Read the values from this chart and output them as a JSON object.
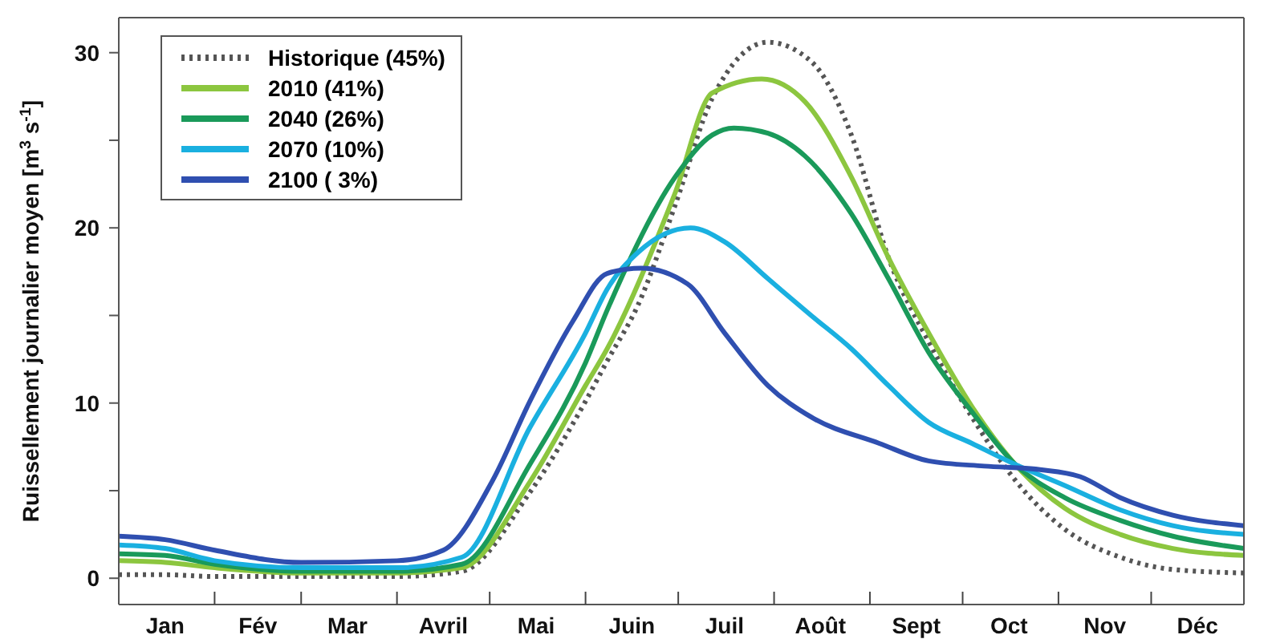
{
  "chart_data": {
    "type": "line",
    "ylabel": "Ruissellement journalier moyen [m$^{3}$ s$^{-1}$]",
    "xlim": [
      "--01-01",
      "--12-31"
    ],
    "xticks": [
      {
        "value": "--01-16",
        "label": "Jan"
      },
      {
        "value": "--02-01",
        "label": null
      },
      {
        "value": "--02-15",
        "label": "Fév"
      },
      {
        "value": "--03-01",
        "label": null
      },
      {
        "value": "--03-16",
        "label": "Mar"
      },
      {
        "value": "--04-01",
        "label": null
      },
      {
        "value": "--04-16",
        "label": "Avril"
      },
      {
        "value": "--05-01",
        "label": null
      },
      {
        "value": "--05-16",
        "label": "Mai"
      },
      {
        "value": "--06-01",
        "label": null
      },
      {
        "value": "--06-16",
        "label": "Juin"
      },
      {
        "value": "--07-01",
        "label": null
      },
      {
        "value": "--07-16",
        "label": "Juil"
      },
      {
        "value": "--08-01",
        "label": null
      },
      {
        "value": "--08-16",
        "label": "Août"
      },
      {
        "value": "--09-01",
        "label": null
      },
      {
        "value": "--09-16",
        "label": "Sept"
      },
      {
        "value": "--10-01",
        "label": null
      },
      {
        "value": "--10-16",
        "label": "Oct"
      },
      {
        "value": "--11-01",
        "label": null
      },
      {
        "value": "--11-16",
        "label": "Nov"
      },
      {
        "value": "--12-01",
        "label": null
      },
      {
        "value": "--12-16",
        "label": "Déc"
      }
    ],
    "ylim": [
      -1.5,
      32
    ],
    "yticks": [
      0,
      {
        "value": 5,
        "label": null
      },
      10,
      {
        "value": 15,
        "label": null
      },
      20,
      {
        "value": 25,
        "label": null
      },
      30
    ],
    "legend": "top left",
    "marker": "none",
    "series": [
      {
        "name": "Historique (45%)",
        "color": "#555555",
        "line_style": "dotted",
        "x": [
          "--01-01",
          "--01-16",
          "--02-01",
          "--03-01",
          "--04-01",
          "--04-22",
          "--05-14",
          "--06-01",
          "--06-08",
          "--06-18",
          "--06-30",
          "--07-12",
          "--07-30",
          "--08-13",
          "--08-26",
          "--09-07",
          "--09-20",
          "--10-04",
          "--10-18",
          "--11-03",
          "--11-21",
          "--12-08",
          "--12-31"
        ],
        "values": [
          0.2,
          0.2,
          0.1,
          0.1,
          0.1,
          0.4,
          4.9,
          10.1,
          12.4,
          15.6,
          21.3,
          27.4,
          30.6,
          29.5,
          25.3,
          18.3,
          13.5,
          9.2,
          5.6,
          2.8,
          1.2,
          0.5,
          0.3
        ]
      },
      {
        "name": "2010 (41%)",
        "color": "#8cc63f",
        "line_style": "solid",
        "x": [
          "--01-01",
          "--01-16",
          "--02-01",
          "--03-01",
          "--04-01",
          "--04-22",
          "--05-14",
          "--06-01",
          "--06-08",
          "--06-30",
          "--07-12",
          "--07-28",
          "--08-11",
          "--08-26",
          "--09-07",
          "--09-20",
          "--10-04",
          "--10-18",
          "--11-03",
          "--11-21",
          "--12-08",
          "--12-31"
        ],
        "values": [
          1.0,
          0.9,
          0.6,
          0.3,
          0.3,
          0.6,
          5.5,
          11,
          13.1,
          22,
          27.7,
          28.5,
          27.2,
          22.9,
          18.3,
          14.0,
          9.8,
          6.5,
          4.0,
          2.5,
          1.7,
          1.3
        ]
      },
      {
        "name": "2040 (26%)",
        "color": "#1a9a5a",
        "line_style": "solid",
        "x": [
          "--01-01",
          "--01-16",
          "--02-01",
          "--03-01",
          "--04-01",
          "--04-22",
          "--05-14",
          "--06-01",
          "--06-08",
          "--06-30",
          "--07-12",
          "--07-19",
          "--07-30",
          "--08-11",
          "--08-26",
          "--09-07",
          "--09-20",
          "--10-04",
          "--10-18",
          "--11-03",
          "--11-21",
          "--12-08",
          "--12-31"
        ],
        "values": [
          1.4,
          1.3,
          0.8,
          0.4,
          0.4,
          0.8,
          6.5,
          12.3,
          15.3,
          22.9,
          25.3,
          25.7,
          25.4,
          24.1,
          20.8,
          17.1,
          12.9,
          9.5,
          6.5,
          4.6,
          3.3,
          2.4,
          1.7
        ]
      },
      {
        "name": "2070 (10%)",
        "color": "#1ab0e0",
        "line_style": "solid",
        "x": [
          "--01-01",
          "--01-16",
          "--02-01",
          "--03-01",
          "--04-01",
          "--04-22",
          "--05-14",
          "--06-01",
          "--06-08",
          "--06-18",
          "--07-05",
          "--07-16",
          "--07-30",
          "--08-13",
          "--08-26",
          "--09-07",
          "--09-20",
          "--10-04",
          "--10-18",
          "--11-03",
          "--11-21",
          "--12-08",
          "--12-31"
        ],
        "values": [
          1.9,
          1.7,
          1.0,
          0.6,
          0.6,
          1.2,
          8.6,
          14.0,
          16.5,
          18.6,
          20.0,
          19.2,
          17.1,
          15.0,
          13.1,
          11.0,
          8.9,
          7.7,
          6.5,
          5.3,
          3.9,
          3.0,
          2.5
        ]
      },
      {
        "name": "2100 ( 3%)",
        "color": "#2f4fb0",
        "line_style": "solid",
        "x": [
          "--01-01",
          "--01-16",
          "--02-01",
          "--03-01",
          "--04-01",
          "--04-16",
          "--05-02",
          "--05-14",
          "--05-28",
          "--06-08",
          "--06-19",
          "--07-04",
          "--07-16",
          "--07-30",
          "--08-13",
          "--09-04",
          "--09-20",
          "--10-08",
          "--10-26",
          "--11-08",
          "--11-21",
          "--12-08",
          "--12-31"
        ],
        "values": [
          2.4,
          2.2,
          1.6,
          0.9,
          1.0,
          1.6,
          5.6,
          10.1,
          14.7,
          17.4,
          17.7,
          16.8,
          14.0,
          11.0,
          9.2,
          7.7,
          6.7,
          6.4,
          6.2,
          5.8,
          4.6,
          3.6,
          3.0
        ]
      }
    ]
  }
}
